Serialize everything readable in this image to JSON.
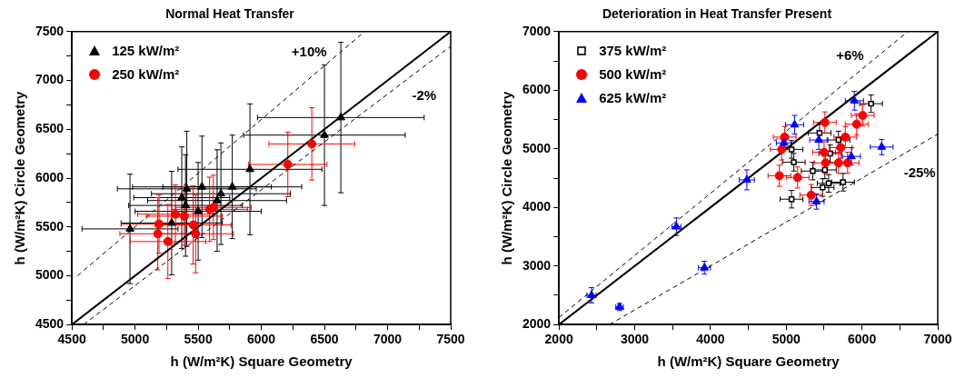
{
  "chart_data": [
    {
      "type": "scatter",
      "title": "Normal Heat Transfer",
      "xlabel": "h (W/m²K) Square Geometry",
      "ylabel": "h (W/m²K) Circle Geometry",
      "xlim": [
        4500,
        7500
      ],
      "ylim": [
        4500,
        7500
      ],
      "xticks": [
        4500,
        {
          "value": 4750,
          "label": null
        },
        5000,
        {
          "value": 5250,
          "label": null
        },
        5500,
        {
          "value": 5750,
          "label": null
        },
        6000,
        {
          "value": 6250,
          "label": null
        },
        6500,
        {
          "value": 6750,
          "label": null
        },
        7000,
        {
          "value": 7250,
          "label": null
        },
        7500
      ],
      "yticks": [
        4500,
        {
          "value": 4750,
          "label": null
        },
        5000,
        {
          "value": 5250,
          "label": null
        },
        5500,
        {
          "value": 5750,
          "label": null
        },
        6000,
        {
          "value": 6250,
          "label": null
        },
        6500,
        {
          "value": 6750,
          "label": null
        },
        7000,
        {
          "value": 7250,
          "label": null
        },
        7500
      ],
      "grid": false,
      "legend": "top left",
      "series": [
        {
          "name": "125 kW/m²",
          "color": "#000000",
          "marker": "triangle",
          "x": [
            4960,
            5290,
            5370,
            5410,
            5530,
            5650,
            5500,
            5400,
            5680,
            5770,
            5910,
            6500,
            6630
          ],
          "values": [
            5480,
            5540,
            5800,
            5890,
            5910,
            5770,
            5660,
            5720,
            5840,
            5910,
            6090,
            6440,
            6620
          ],
          "errors": [
            560,
            530,
            520,
            590,
            520,
            520,
            500,
            520,
            520,
            530,
            670,
            720,
            770
          ],
          "xerrors": [
            380,
            400,
            380,
            550,
            550,
            550,
            500,
            450,
            550,
            550,
            570,
            640,
            660
          ]
        },
        {
          "name": "250 kW/m²",
          "color": "#ff0000",
          "marker": "circle",
          "x": [
            5180,
            5190,
            5260,
            5320,
            5390,
            5460,
            5480,
            5590,
            5620,
            6210,
            6400
          ],
          "values": [
            5430,
            5530,
            5350,
            5630,
            5610,
            5520,
            5430,
            5680,
            5700,
            6140,
            6350
          ],
          "errors": [
            370,
            300,
            380,
            300,
            300,
            400,
            400,
            330,
            330,
            330,
            370
          ],
          "xerrors": [
            300,
            300,
            300,
            300,
            300,
            300,
            300,
            300,
            300,
            310,
            340
          ]
        },
        {
          "type": "line",
          "color": "#000000",
          "line_style": "solid",
          "marker": "none",
          "x": [
            4500,
            7500
          ],
          "values": [
            4500,
            7500
          ]
        },
        {
          "type": "line",
          "name": "+10%",
          "color": "#000000",
          "line_style": "dashed",
          "marker": "none",
          "x": [
            4545,
            6818
          ],
          "values": [
            5000,
            7500
          ]
        },
        {
          "type": "line",
          "name": "-2%",
          "color": "#000000",
          "line_style": "dashed",
          "marker": "none",
          "x": [
            4592,
            7500
          ],
          "values": [
            4500,
            7350
          ]
        }
      ]
    },
    {
      "type": "scatter",
      "title": "Deterioration in Heat Transfer Present",
      "xlabel": "h (W/m²K) Square Geometry",
      "ylabel": "h (W/m²K) Circle Geometry",
      "xlim": [
        2000,
        7000
      ],
      "ylim": [
        2000,
        7000
      ],
      "xticks": [
        2000,
        {
          "value": 2500,
          "label": null
        },
        3000,
        {
          "value": 3500,
          "label": null
        },
        4000,
        {
          "value": 4500,
          "label": null
        },
        5000,
        {
          "value": 5500,
          "label": null
        },
        6000,
        {
          "value": 6500,
          "label": null
        },
        7000
      ],
      "yticks": [
        2000,
        {
          "value": 2500,
          "label": null
        },
        3000,
        {
          "value": 3500,
          "label": null
        },
        4000,
        {
          "value": 4500,
          "label": null
        },
        5000,
        {
          "value": 5500,
          "label": null
        },
        6000,
        {
          "value": 6500,
          "label": null
        },
        7000
      ],
      "grid": false,
      "legend": "top left",
      "series": [
        {
          "name": "375 kW/m²",
          "color": "#000000",
          "marker": "square",
          "x": [
            5070,
            5100,
            5350,
            5510,
            5580,
            5690,
            5440,
            5560,
            5750,
            5480,
            5070,
            6120
          ],
          "values": [
            4990,
            4770,
            4620,
            4640,
            4920,
            5150,
            5270,
            4410,
            4430,
            4340,
            4140,
            5770
          ],
          "errors": [
            150,
            150,
            150,
            150,
            150,
            150,
            150,
            150,
            150,
            150,
            150,
            150
          ],
          "xerrors": [
            150,
            150,
            150,
            150,
            150,
            150,
            150,
            150,
            150,
            150,
            150,
            150
          ]
        },
        {
          "name": "500 kW/m²",
          "color": "#ff0000",
          "marker": "circle",
          "x": [
            5510,
            4980,
            4940,
            5780,
            5930,
            5720,
            5500,
            5520,
            5690,
            5810,
            4910,
            5150,
            5330,
            6010
          ],
          "values": [
            5450,
            5200,
            4990,
            5200,
            5420,
            5020,
            4940,
            4760,
            4760,
            4760,
            4540,
            4510,
            4210,
            5570
          ],
          "errors": [
            180,
            180,
            180,
            180,
            180,
            180,
            180,
            180,
            180,
            180,
            180,
            180,
            180,
            180
          ],
          "xerrors": [
            150,
            150,
            150,
            150,
            150,
            150,
            150,
            150,
            150,
            150,
            150,
            150,
            150,
            150
          ]
        },
        {
          "name": "625 kW/m²",
          "color": "#0000ff",
          "marker": "triangle",
          "x": [
            2430,
            2800,
            3550,
            3920,
            4480,
            5110,
            4970,
            5430,
            5860,
            6260,
            5400,
            5900
          ],
          "values": [
            2500,
            2300,
            3670,
            2970,
            4470,
            5410,
            5100,
            5150,
            4870,
            5030,
            4100,
            5820
          ],
          "errors": [
            130,
            60,
            150,
            110,
            170,
            160,
            60,
            160,
            150,
            130,
            130,
            160
          ],
          "xerrors": [
            60,
            50,
            60,
            80,
            100,
            120,
            100,
            120,
            120,
            150,
            100,
            120
          ]
        },
        {
          "type": "line",
          "color": "#000000",
          "line_style": "solid",
          "marker": "none",
          "x": [
            2000,
            7000
          ],
          "values": [
            2000,
            7000
          ]
        },
        {
          "type": "line",
          "name": "+6%",
          "color": "#000000",
          "line_style": "dashed",
          "marker": "none",
          "x": [
            2000,
            6604
          ],
          "values": [
            2120,
            7000
          ]
        },
        {
          "type": "line",
          "name": "-25%",
          "color": "#000000",
          "line_style": "dashed",
          "marker": "none",
          "x": [
            2667,
            7000
          ],
          "values": [
            2000,
            5250
          ]
        }
      ]
    }
  ]
}
